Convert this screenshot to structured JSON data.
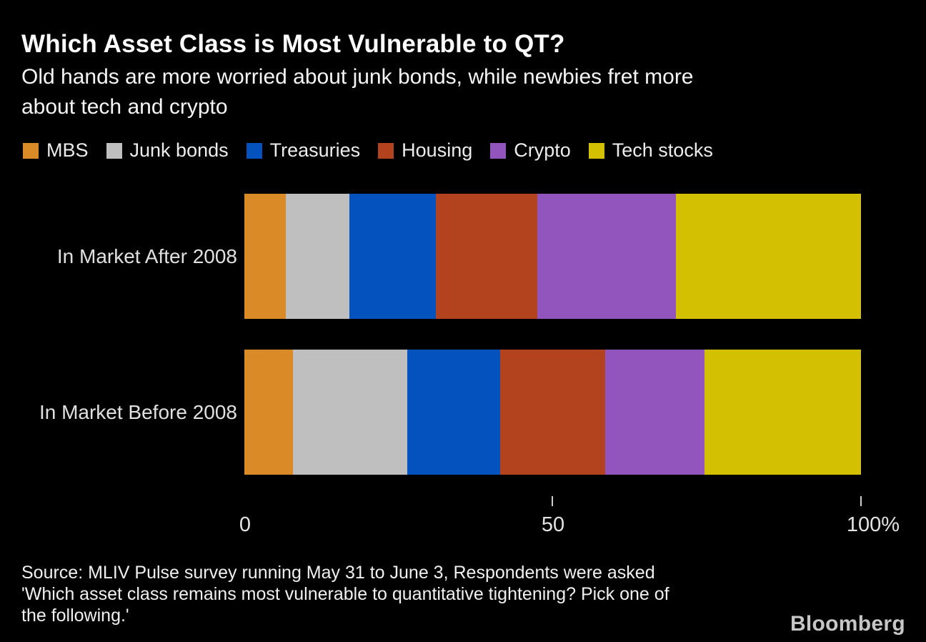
{
  "page": {
    "title": "Which Asset Class is Most Vulnerable to QT?",
    "subtitle_line1": "Old hands are more worried about junk bonds, while newbies fret more",
    "subtitle_line2": "about tech and crypto"
  },
  "chart_data": {
    "type": "bar",
    "variant": "stacked-horizontal-percentage",
    "title": "Which Asset Class is Most Vulnerable to QT?",
    "categories": [
      "In Market After 2008",
      "In Market Before 2008"
    ],
    "series": [
      {
        "name": "MBS",
        "color": "#DB8A28",
        "values": [
          6.7,
          7.9
        ]
      },
      {
        "name": "Junk bonds",
        "color": "#BFBFBF",
        "values": [
          10.3,
          18.5
        ]
      },
      {
        "name": "Treasuries",
        "color": "#0452BE",
        "values": [
          14.1,
          15.1
        ]
      },
      {
        "name": "Housing",
        "color": "#B2431E",
        "values": [
          16.4,
          17.0
        ]
      },
      {
        "name": "Crypto",
        "color": "#9254BD",
        "values": [
          22.5,
          16.1
        ]
      },
      {
        "name": "Tech stocks",
        "color": "#D3C002",
        "values": [
          30.0,
          25.4
        ]
      }
    ],
    "unit": "%",
    "xlim": [
      0,
      100
    ],
    "x_ticks": [
      {
        "value": 0,
        "label": "0"
      },
      {
        "value": 50,
        "label": "50"
      },
      {
        "value": 100,
        "label": "100%"
      }
    ],
    "legend_position": "top",
    "grid": false,
    "background_color": "#000000"
  },
  "source": {
    "line1": "Source: MLIV Pulse survey running May 31 to June 3, Respondents were asked",
    "line2": "'Which asset class remains most vulnerable to quantitative tightening? Pick one of",
    "line3": "the following.'"
  },
  "branding": {
    "logo_text": "Bloomberg"
  }
}
